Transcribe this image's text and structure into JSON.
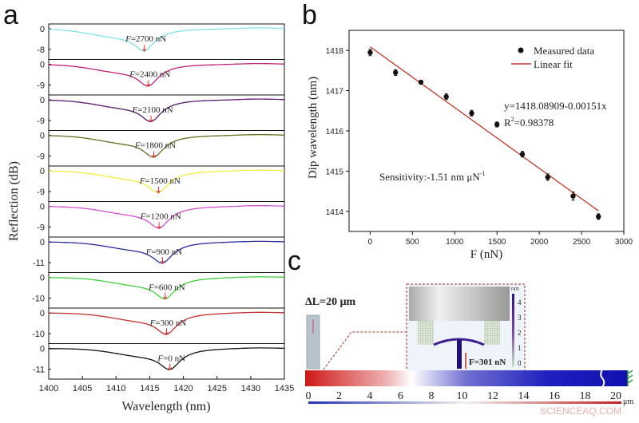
{
  "panel_labels": {
    "a": "a",
    "b": "b",
    "c": "c"
  },
  "watermark": "SCIENCEAQ.COM",
  "chart_data": [
    {
      "type": "line",
      "panel": "a",
      "xlabel": "Wavelength (nm)",
      "ylabel": "Reflection (dB)",
      "xlim": [
        1400,
        1435
      ],
      "xticks": [
        1400,
        1405,
        1410,
        1415,
        1420,
        1425,
        1430,
        1435
      ],
      "marker_color": "#e03030",
      "series": [
        {
          "name": "F=2700 nN",
          "force": "2700",
          "color": "#7fe3ea",
          "yticks": [
            0,
            -8
          ],
          "dip": 1414.2,
          "depth": 9.5
        },
        {
          "name": "F=2400 nN",
          "force": "2400",
          "color": "#c0207a",
          "yticks": [
            0,
            -9
          ],
          "dip": 1414.8,
          "depth": 10.5
        },
        {
          "name": "F=2100 nN",
          "force": "2100",
          "color": "#5a1a70",
          "yticks": [
            0,
            -9
          ],
          "dip": 1415.2,
          "depth": 10.5
        },
        {
          "name": "F=1800 nN",
          "force": "1800",
          "color": "#6b6a1e",
          "yticks": [
            0,
            -9
          ],
          "dip": 1415.6,
          "depth": 10.5
        },
        {
          "name": "F=1500 nN",
          "force": "1500",
          "color": "#f0ee40",
          "yticks": [
            0,
            -9
          ],
          "dip": 1416.3,
          "depth": 10.5
        },
        {
          "name": "F=1200 nN",
          "force": "1200",
          "color": "#d050d0",
          "yticks": [
            0,
            -9
          ],
          "dip": 1416.4,
          "depth": 10.5
        },
        {
          "name": "F=900 nN",
          "force": "900",
          "color": "#2a2aa0",
          "yticks": [
            0,
            -11
          ],
          "dip": 1416.9,
          "depth": 12.5
        },
        {
          "name": "F=600 nN",
          "force": "600",
          "color": "#40d040",
          "yticks": [
            0,
            -10
          ],
          "dip": 1417.3,
          "depth": 11.5
        },
        {
          "name": "F=300 nN",
          "force": "300",
          "color": "#c03030",
          "yticks": [
            0,
            -10
          ],
          "dip": 1417.5,
          "depth": 11.5
        },
        {
          "name": "F=0 nN",
          "force": "0",
          "color": "#111111",
          "yticks": [
            0,
            -11
          ],
          "dip": 1418.0,
          "depth": 12.5
        }
      ]
    },
    {
      "type": "scatter",
      "panel": "b",
      "xlabel": "F (nN)",
      "ylabel": "Dip wavelength (nm)",
      "xlim": [
        -250,
        3000
      ],
      "ylim": [
        1413.5,
        1418.5
      ],
      "xticks": [
        0,
        500,
        1000,
        1500,
        2000,
        2500,
        3000
      ],
      "yticks": [
        1414,
        1415,
        1416,
        1417,
        1418
      ],
      "legend": {
        "position": "top-right",
        "entries": [
          "Measured data",
          "Linear fit"
        ]
      },
      "series": [
        {
          "name": "Measured data",
          "color": "#111111",
          "x": [
            0,
            300,
            600,
            900,
            1200,
            1500,
            1800,
            2100,
            2400,
            2700
          ],
          "y": [
            1417.95,
            1417.45,
            1417.21,
            1416.85,
            1416.44,
            1416.16,
            1415.42,
            1414.85,
            1414.38,
            1413.87
          ],
          "err": [
            0.08,
            0.07,
            0.05,
            0.07,
            0.07,
            0.06,
            0.07,
            0.08,
            0.1,
            0.07
          ]
        },
        {
          "name": "Linear fit",
          "color": "#c0392b",
          "intercept": 1418.08909,
          "slope": -0.00151,
          "x_range": [
            0,
            2700
          ]
        }
      ],
      "annotations": {
        "equation": "y=1418.08909-0.00151x",
        "r2_prefix": "R",
        "r2_sup": "2",
        "r2_value": "=0.98378",
        "sensitivity": "Sensitivity:-1.51 nm μN",
        "sensitivity_sup": "-1"
      }
    }
  ],
  "panel_c": {
    "delta_l": "ΔL=20 μm",
    "force": "F=301 nN",
    "colorbar_unit": "nm",
    "colorbar_ticks": [
      "4",
      "3",
      "2",
      "1",
      "0"
    ],
    "scale_ticks": [
      "0",
      "2",
      "4",
      "6",
      "8",
      "10",
      "12",
      "14",
      "16",
      "18",
      "20"
    ],
    "scale_unit": "μm"
  }
}
